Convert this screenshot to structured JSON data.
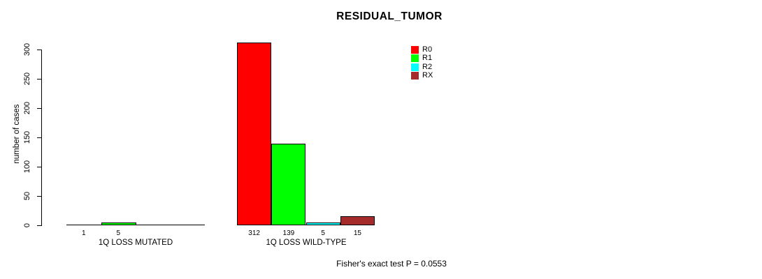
{
  "title": "RESIDUAL_TUMOR",
  "footer": "Fisher's exact test P = 0.0553",
  "y_axis": {
    "label": "number of cases"
  },
  "chart_data": {
    "type": "bar",
    "title": "RESIDUAL_TUMOR",
    "ylabel": "number of cases",
    "xlabel": "",
    "ylim": [
      0,
      300
    ],
    "yticks": [
      "0",
      "50",
      "100",
      "150",
      "200",
      "250",
      "300"
    ],
    "grid": false,
    "legend_position": "top-right",
    "categories": [
      "1Q LOSS MUTATED",
      "1Q LOSS WILD-TYPE"
    ],
    "series": [
      {
        "name": "R0",
        "color": "#FF0000",
        "values": [
          1,
          312
        ]
      },
      {
        "name": "R1",
        "color": "#00FF00",
        "values": [
          5,
          139
        ]
      },
      {
        "name": "R2",
        "color": "#00FFFF",
        "values": [
          0,
          5
        ]
      },
      {
        "name": "RX",
        "color": "#A52A2A",
        "values": [
          0,
          15
        ]
      }
    ],
    "bar_value_labels": [
      [
        "1",
        "5",
        null,
        null
      ],
      [
        "312",
        "139",
        "5",
        "15"
      ]
    ],
    "annotation": "Fisher's exact test P = 0.0553"
  }
}
